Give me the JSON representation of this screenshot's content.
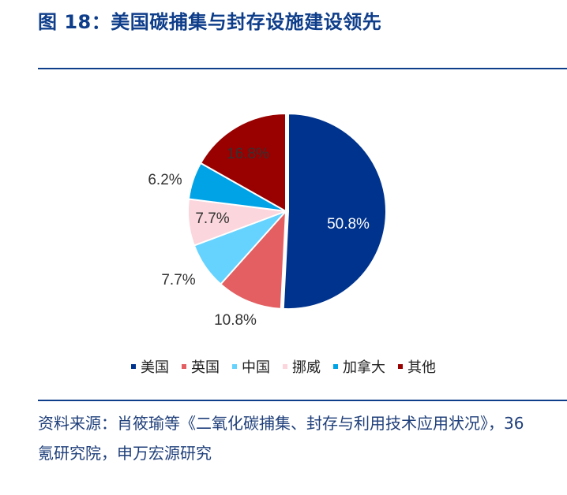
{
  "title": "图 18：美国碳捕集与封存设施建设领先",
  "chart_data": {
    "type": "pie",
    "title": "",
    "legend_position": "bottom",
    "slices": [
      {
        "label": "美国",
        "value": 50.8,
        "display": "50.8%",
        "color": "#00338d"
      },
      {
        "label": "英国",
        "value": 10.8,
        "display": "10.8%",
        "color": "#e35f62"
      },
      {
        "label": "中国",
        "value": 7.7,
        "display": "7.7%",
        "color": "#66d3ff"
      },
      {
        "label": "挪威",
        "value": 7.7,
        "display": "7.7%",
        "color": "#fbd6dc"
      },
      {
        "label": "加拿大",
        "value": 6.2,
        "display": "6.2%",
        "color": "#00a3e6"
      },
      {
        "label": "其他",
        "value": 16.8,
        "display": "16.8%",
        "color": "#990000"
      }
    ]
  },
  "source": "资料来源：肖筱瑜等《二氧化碳捕集、封存与利用技术应用状况》，36 氪研究院，申万宏源研究"
}
